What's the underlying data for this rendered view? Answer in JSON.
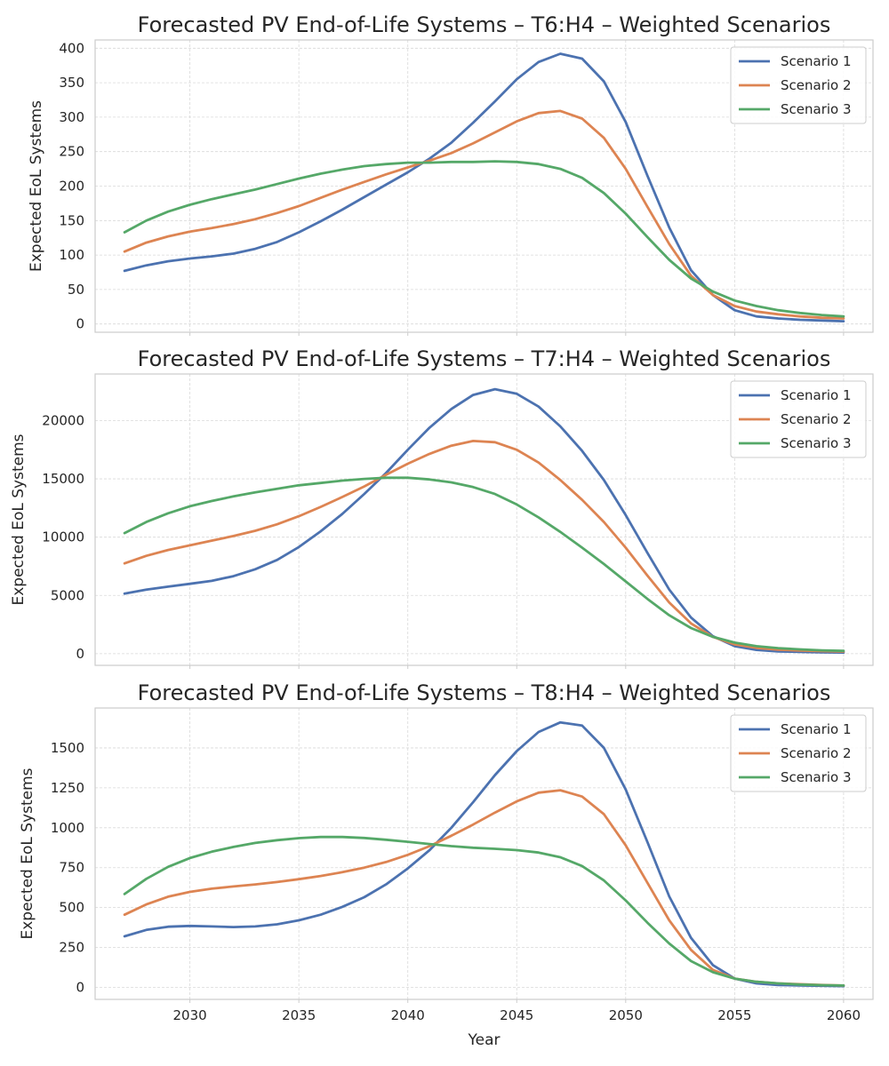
{
  "chart_data": [
    {
      "type": "line",
      "title": "Forecasted PV End-of-Life Systems – T6:H4 – Weighted Scenarios",
      "ylabel": "Expected EoL Systems",
      "xlabel": "",
      "xlim": [
        2025.65,
        2061.35
      ],
      "ylim": [
        -12,
        412
      ],
      "xticks": [
        2030,
        2035,
        2040,
        2045,
        2050,
        2055,
        2060
      ],
      "xtick_labels": [
        "",
        "",
        "",
        "",
        "",
        "",
        ""
      ],
      "yticks": [
        0,
        50,
        100,
        150,
        200,
        250,
        300,
        350,
        400
      ],
      "ytick_labels": [
        "0",
        "50",
        "100",
        "150",
        "200",
        "250",
        "300",
        "350",
        "400"
      ],
      "grid": true,
      "legend": "top-right",
      "x": [
        2027,
        2028,
        2029,
        2030,
        2031,
        2032,
        2033,
        2034,
        2035,
        2036,
        2037,
        2038,
        2039,
        2040,
        2041,
        2042,
        2043,
        2044,
        2045,
        2046,
        2047,
        2048,
        2049,
        2050,
        2051,
        2052,
        2053,
        2054,
        2055,
        2056,
        2057,
        2058,
        2059,
        2060
      ],
      "series": [
        {
          "name": "Scenario 1",
          "color": "#4c72b0",
          "values": [
            77,
            85,
            91,
            95,
            98,
            102,
            109,
            119,
            133,
            149,
            166,
            184,
            202,
            220,
            240,
            263,
            292,
            323,
            355,
            380,
            392,
            385,
            352,
            293,
            215,
            140,
            78,
            42,
            20,
            11,
            8,
            6,
            5,
            4
          ]
        },
        {
          "name": "Scenario 2",
          "color": "#dd8452",
          "values": [
            105,
            118,
            127,
            134,
            139,
            145,
            152,
            161,
            171,
            183,
            195,
            206,
            217,
            227,
            237,
            248,
            262,
            278,
            294,
            306,
            309,
            298,
            270,
            225,
            170,
            116,
            70,
            42,
            26,
            18,
            14,
            11,
            9,
            8
          ]
        },
        {
          "name": "Scenario 3",
          "color": "#55a868",
          "values": [
            133,
            150,
            163,
            173,
            181,
            188,
            195,
            203,
            211,
            218,
            224,
            229,
            232,
            234,
            234,
            235,
            235,
            236,
            235,
            232,
            225,
            212,
            190,
            160,
            126,
            93,
            66,
            47,
            34,
            26,
            20,
            16,
            13,
            11
          ]
        }
      ]
    },
    {
      "type": "line",
      "title": "Forecasted PV End-of-Life Systems – T7:H4 – Weighted Scenarios",
      "ylabel": "Expected EoL Systems",
      "xlabel": "",
      "xlim": [
        2025.65,
        2061.35
      ],
      "ylim": [
        -1000,
        24000
      ],
      "xticks": [
        2030,
        2035,
        2040,
        2045,
        2050,
        2055,
        2060
      ],
      "xtick_labels": [
        "",
        "",
        "",
        "",
        "",
        "",
        ""
      ],
      "yticks": [
        0,
        5000,
        10000,
        15000,
        20000
      ],
      "ytick_labels": [
        "0",
        "5000",
        "10000",
        "15000",
        "20000"
      ],
      "grid": true,
      "legend": "top-right",
      "x": [
        2027,
        2028,
        2029,
        2030,
        2031,
        2032,
        2033,
        2034,
        2035,
        2036,
        2037,
        2038,
        2039,
        2040,
        2041,
        2042,
        2043,
        2044,
        2045,
        2046,
        2047,
        2048,
        2049,
        2050,
        2051,
        2052,
        2053,
        2054,
        2055,
        2056,
        2057,
        2058,
        2059,
        2060
      ],
      "series": [
        {
          "name": "Scenario 1",
          "color": "#4c72b0",
          "values": [
            5150,
            5500,
            5750,
            6000,
            6250,
            6650,
            7250,
            8050,
            9150,
            10500,
            12000,
            13700,
            15500,
            17500,
            19400,
            21000,
            22200,
            22700,
            22300,
            21200,
            19500,
            17400,
            14900,
            11900,
            8650,
            5500,
            3100,
            1500,
            650,
            330,
            200,
            150,
            120,
            100
          ]
        },
        {
          "name": "Scenario 2",
          "color": "#dd8452",
          "values": [
            7750,
            8400,
            8900,
            9300,
            9700,
            10100,
            10550,
            11100,
            11800,
            12600,
            13450,
            14350,
            15350,
            16300,
            17150,
            17850,
            18250,
            18150,
            17500,
            16400,
            14900,
            13200,
            11300,
            9100,
            6700,
            4400,
            2600,
            1450,
            800,
            500,
            350,
            270,
            220,
            180
          ]
        },
        {
          "name": "Scenario 3",
          "color": "#55a868",
          "values": [
            10350,
            11300,
            12050,
            12650,
            13100,
            13500,
            13850,
            14150,
            14450,
            14650,
            14850,
            15000,
            15100,
            15100,
            14950,
            14700,
            14300,
            13700,
            12800,
            11700,
            10450,
            9100,
            7700,
            6200,
            4700,
            3300,
            2200,
            1450,
            950,
            650,
            480,
            370,
            290,
            240
          ]
        }
      ]
    },
    {
      "type": "line",
      "title": "Forecasted PV End-of-Life Systems – T8:H4 – Weighted Scenarios",
      "ylabel": "Expected EoL Systems",
      "xlabel": "Year",
      "xlim": [
        2025.65,
        2061.35
      ],
      "ylim": [
        -75,
        1750
      ],
      "xticks": [
        2030,
        2035,
        2040,
        2045,
        2050,
        2055,
        2060
      ],
      "xtick_labels": [
        "2030",
        "2035",
        "2040",
        "2045",
        "2050",
        "2055",
        "2060"
      ],
      "yticks": [
        0,
        250,
        500,
        750,
        1000,
        1250,
        1500
      ],
      "ytick_labels": [
        "0",
        "250",
        "500",
        "750",
        "1000",
        "1250",
        "1500"
      ],
      "grid": true,
      "legend": "top-right",
      "x": [
        2027,
        2028,
        2029,
        2030,
        2031,
        2032,
        2033,
        2034,
        2035,
        2036,
        2037,
        2038,
        2039,
        2040,
        2041,
        2042,
        2043,
        2044,
        2045,
        2046,
        2047,
        2048,
        2049,
        2050,
        2051,
        2052,
        2053,
        2054,
        2055,
        2056,
        2057,
        2058,
        2059,
        2060
      ],
      "series": [
        {
          "name": "Scenario 1",
          "color": "#4c72b0",
          "values": [
            320,
            360,
            380,
            385,
            382,
            378,
            382,
            395,
            420,
            455,
            505,
            565,
            645,
            745,
            860,
            1000,
            1160,
            1330,
            1480,
            1600,
            1660,
            1640,
            1500,
            1240,
            910,
            570,
            310,
            140,
            55,
            25,
            15,
            12,
            10,
            8
          ]
        },
        {
          "name": "Scenario 2",
          "color": "#dd8452",
          "values": [
            455,
            520,
            568,
            598,
            618,
            632,
            645,
            660,
            678,
            698,
            722,
            750,
            785,
            830,
            885,
            950,
            1020,
            1095,
            1165,
            1220,
            1235,
            1195,
            1085,
            890,
            655,
            420,
            235,
            110,
            55,
            35,
            25,
            20,
            15,
            12
          ]
        },
        {
          "name": "Scenario 3",
          "color": "#55a868",
          "values": [
            585,
            680,
            755,
            810,
            850,
            880,
            905,
            922,
            935,
            942,
            942,
            936,
            925,
            912,
            898,
            885,
            875,
            868,
            860,
            845,
            815,
            760,
            670,
            545,
            405,
            275,
            165,
            95,
            55,
            35,
            25,
            18,
            14,
            12
          ]
        }
      ]
    }
  ]
}
